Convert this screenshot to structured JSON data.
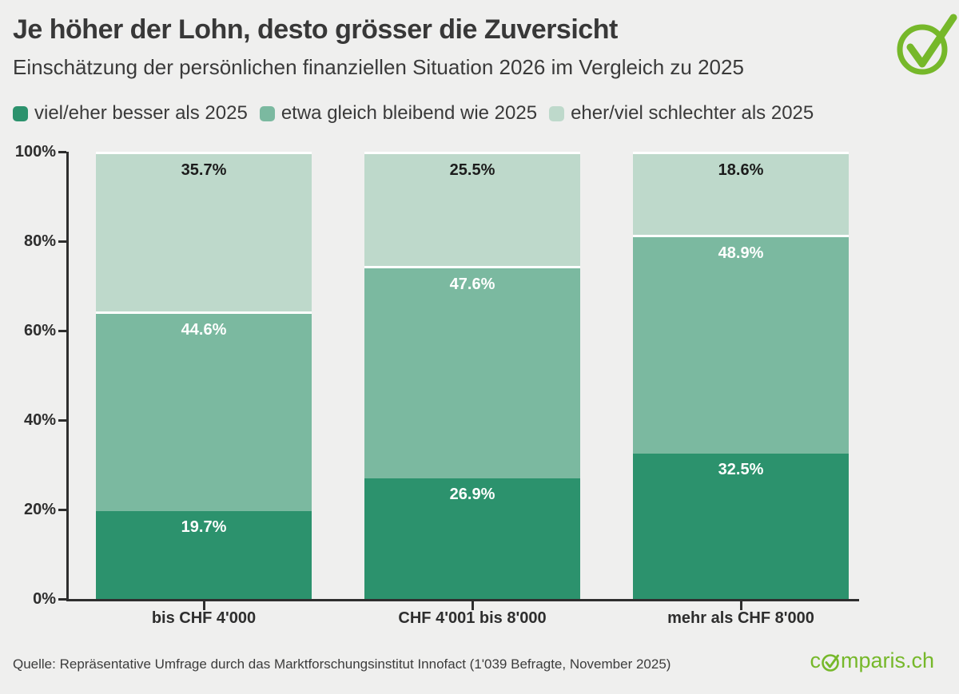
{
  "header": {
    "title": "Je höher der Lohn, desto grösser die Zuversicht",
    "subtitle": "Einschätzung der persönlichen finanziellen Situation 2026 im Vergleich zu 2025"
  },
  "legend": [
    {
      "label": "viel/eher besser als 2025",
      "color": "#2c926d"
    },
    {
      "label": "etwa gleich bleibend wie 2025",
      "color": "#7bb9a0"
    },
    {
      "label": "eher/viel schlechter als 2025",
      "color": "#bed9cb"
    }
  ],
  "chart_data": {
    "type": "bar",
    "stacked": true,
    "title": "Je höher der Lohn, desto grösser die Zuversicht",
    "subtitle": "Einschätzung der persönlichen finanziellen Situation 2026 im Vergleich zu 2025",
    "categories": [
      "bis CHF 4'000",
      "CHF 4'001 bis 8'000",
      "mehr als CHF 8'000"
    ],
    "series": [
      {
        "name": "viel/eher besser als 2025",
        "color": "#2c926d",
        "label_color": "#ffffff",
        "values": [
          19.7,
          26.9,
          32.5
        ]
      },
      {
        "name": "etwa gleich bleibend wie 2025",
        "color": "#7bb9a0",
        "label_color": "#ffffff",
        "values": [
          44.6,
          47.6,
          48.9
        ]
      },
      {
        "name": "eher/viel schlechter als 2025",
        "color": "#bed9cb",
        "label_color": "#1c1c1c",
        "values": [
          35.7,
          25.5,
          18.6
        ]
      }
    ],
    "y_ticks": [
      "0%",
      "20%",
      "40%",
      "60%",
      "80%",
      "100%"
    ],
    "ylim": [
      0,
      100
    ],
    "value_suffix": "%",
    "grid": false,
    "legend_position": "top"
  },
  "footer": {
    "source": "Quelle: Repräsentative Umfrage durch das Marktforschungsinstitut Innofact (1'039 Befragte, November 2025)",
    "logo_prefix": "c",
    "logo_suffix": "mparis.ch"
  },
  "colors": {
    "background": "#efefee",
    "brand_green": "#76b82a",
    "axis": "#2e2e2e",
    "separator": "#ffffff",
    "title_text": "#383838"
  }
}
